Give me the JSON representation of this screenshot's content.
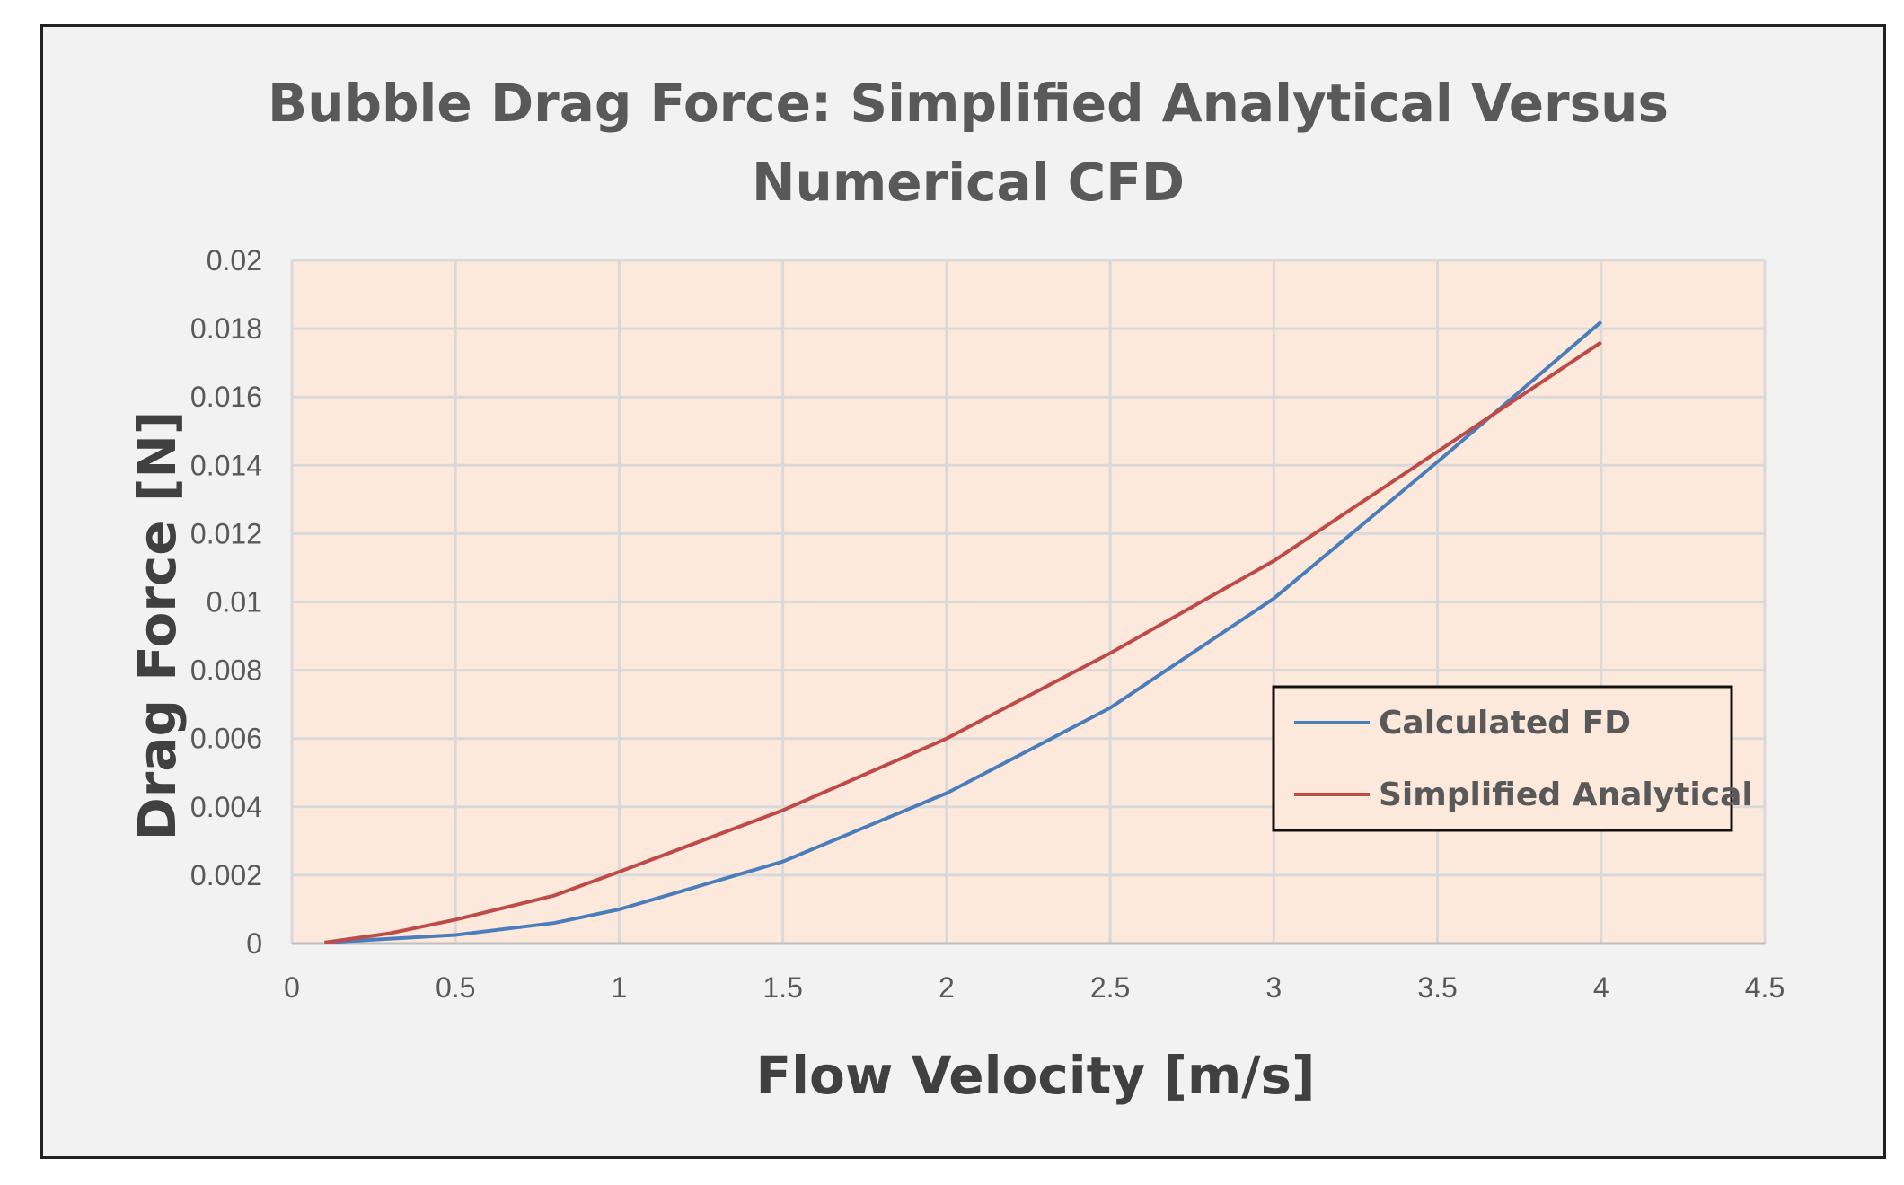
{
  "chart_data": {
    "type": "line",
    "title_lines": [
      "Bubble Drag Force: Simplified Analytical Versus",
      "Numerical CFD"
    ],
    "xlabel": "Flow Velocity [m/s]",
    "ylabel": "Drag Force [N]",
    "xlim": [
      0,
      4.5
    ],
    "ylim": [
      0,
      0.02
    ],
    "x_ticks": [
      0,
      0.5,
      1,
      1.5,
      2,
      2.5,
      3,
      3.5,
      4,
      4.5
    ],
    "x_tick_labels": [
      "0",
      "0.5",
      "1",
      "1.5",
      "2",
      "2.5",
      "3",
      "3.5",
      "4",
      "4.5"
    ],
    "y_ticks": [
      0,
      0.002,
      0.004,
      0.006,
      0.008,
      0.01,
      0.012,
      0.014,
      0.016,
      0.018,
      0.02
    ],
    "y_tick_labels": [
      "0",
      "0.002",
      "0.004",
      "0.006",
      "0.008",
      "0.01",
      "0.012",
      "0.014",
      "0.016",
      "0.018",
      "0.02"
    ],
    "grid": true,
    "plot_background": "#fde9dc",
    "legend_position": "lower-right",
    "series": [
      {
        "name": "Calculated FD",
        "color": "#4a7ebb",
        "x": [
          0.1,
          0.5,
          0.8,
          1,
          1.5,
          2,
          2.5,
          3,
          3.5,
          4
        ],
        "y": [
          3e-05,
          0.00025,
          0.0006,
          0.001,
          0.0024,
          0.0044,
          0.0069,
          0.0101,
          0.0141,
          0.0182
        ]
      },
      {
        "name": "Simplified Analytical",
        "color": "#be4b48",
        "x": [
          0.1,
          0.3,
          0.5,
          0.8,
          1,
          1.5,
          2,
          2.5,
          3,
          3.5,
          4
        ],
        "y": [
          3e-05,
          0.0003,
          0.0007,
          0.0014,
          0.0021,
          0.0039,
          0.006,
          0.0085,
          0.0112,
          0.0144,
          0.0176
        ]
      }
    ]
  }
}
